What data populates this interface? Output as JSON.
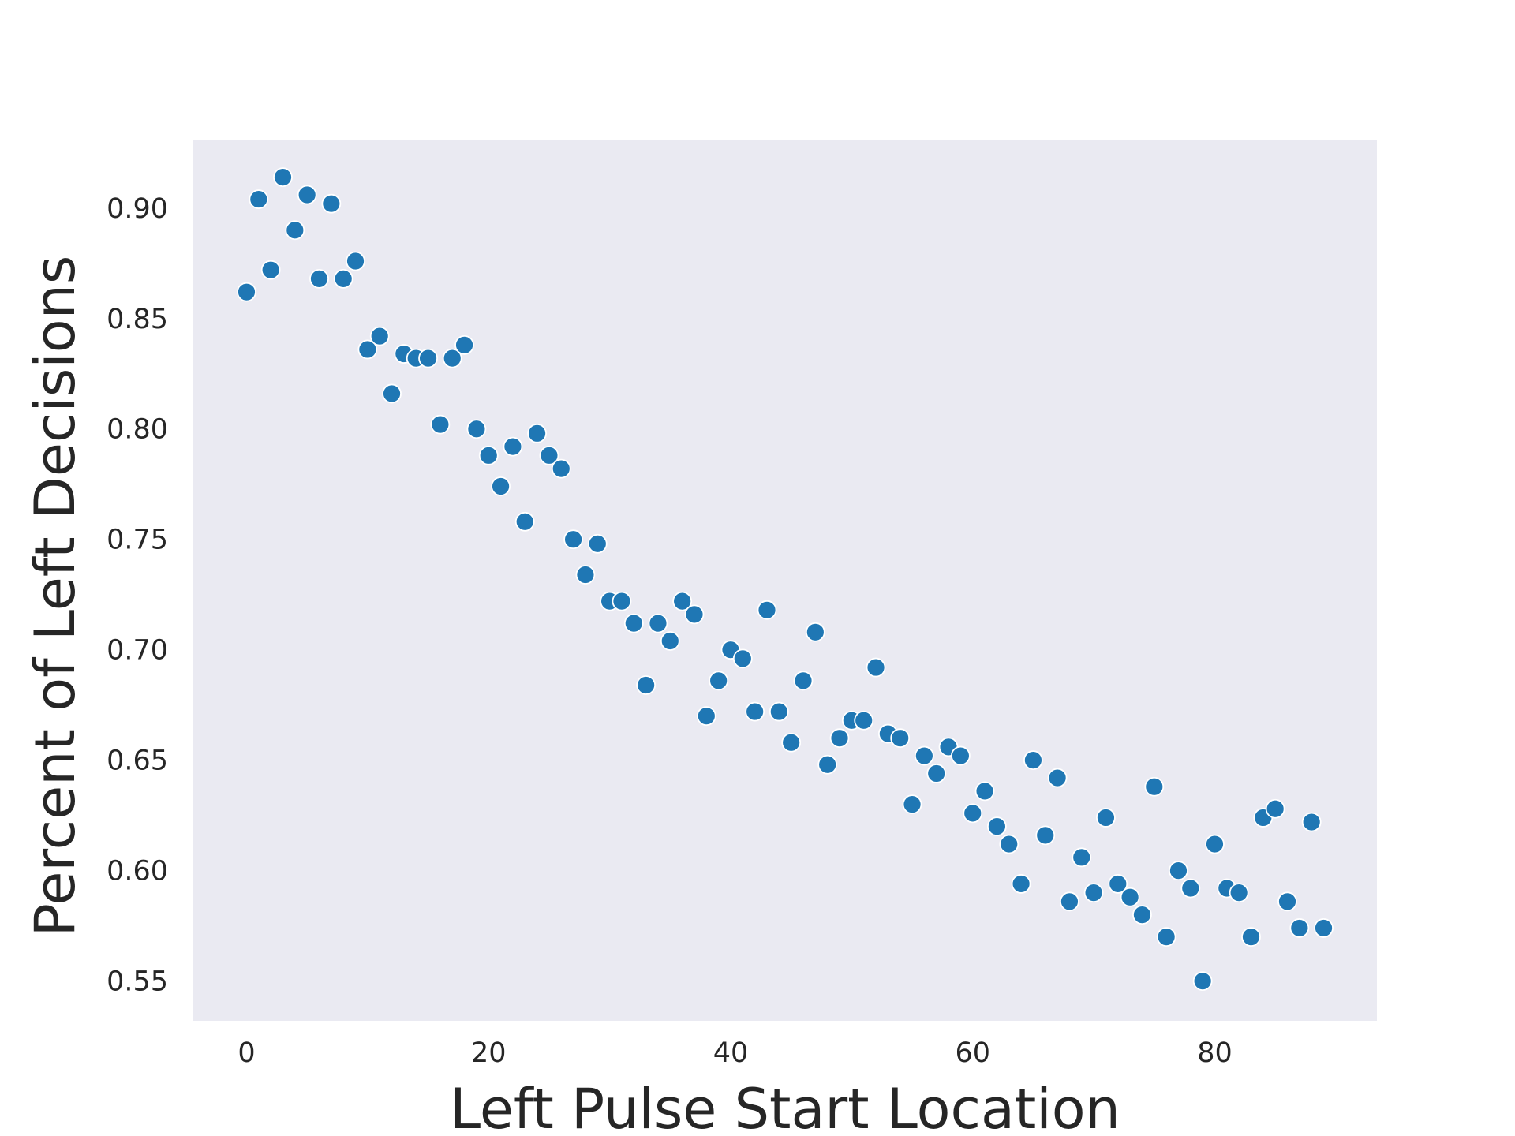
{
  "chart_data": {
    "type": "scatter",
    "title": "",
    "xlabel": "Left Pulse Start Location",
    "ylabel": "Percent of Left Decisions",
    "xlim": [
      -4.4,
      93.4
    ],
    "ylim": [
      0.532,
      0.931
    ],
    "xticks": [
      0,
      20,
      40,
      60,
      80
    ],
    "xtick_labels": [
      "0",
      "20",
      "40",
      "60",
      "80"
    ],
    "yticks": [
      0.55,
      0.6,
      0.65,
      0.7,
      0.75,
      0.8,
      0.85,
      0.9
    ],
    "ytick_labels": [
      "0.55",
      "0.60",
      "0.65",
      "0.70",
      "0.75",
      "0.80",
      "0.85",
      "0.90"
    ],
    "grid": false,
    "legend": "none",
    "colors": {
      "background": "#eaeaf2",
      "marker": "#1f77b4",
      "marker_edge": "#ffffff"
    },
    "series": [
      {
        "x": [
          0,
          1,
          2,
          3,
          4,
          5,
          6,
          7,
          8,
          9,
          10,
          11,
          12,
          13,
          14,
          15,
          16,
          17,
          18,
          19,
          20,
          21,
          22,
          23,
          24,
          25,
          26,
          27,
          28,
          29,
          30,
          31,
          32,
          33,
          34,
          35,
          36,
          37,
          38,
          39,
          40,
          41,
          42,
          43,
          44,
          45,
          46,
          47,
          48,
          49,
          50,
          51,
          52,
          53,
          54,
          55,
          56,
          57,
          58,
          59,
          60,
          61,
          62,
          63,
          64,
          65,
          66,
          67,
          68,
          69,
          70,
          71,
          72,
          73,
          74,
          75,
          76,
          77,
          78,
          79,
          80,
          81,
          82,
          83,
          84,
          85,
          86,
          87,
          88,
          89
        ],
        "y": [
          0.862,
          0.904,
          0.872,
          0.914,
          0.89,
          0.906,
          0.868,
          0.902,
          0.868,
          0.876,
          0.836,
          0.842,
          0.816,
          0.834,
          0.832,
          0.832,
          0.802,
          0.832,
          0.838,
          0.8,
          0.788,
          0.774,
          0.792,
          0.758,
          0.798,
          0.788,
          0.782,
          0.75,
          0.734,
          0.748,
          0.722,
          0.722,
          0.712,
          0.684,
          0.712,
          0.704,
          0.722,
          0.716,
          0.67,
          0.686,
          0.7,
          0.696,
          0.672,
          0.718,
          0.672,
          0.658,
          0.686,
          0.708,
          0.648,
          0.66,
          0.668,
          0.668,
          0.692,
          0.662,
          0.66,
          0.63,
          0.652,
          0.644,
          0.656,
          0.652,
          0.626,
          0.636,
          0.62,
          0.612,
          0.594,
          0.65,
          0.616,
          0.642,
          0.586,
          0.606,
          0.59,
          0.624,
          0.594,
          0.588,
          0.58,
          0.638,
          0.57,
          0.6,
          0.592,
          0.55,
          0.612,
          0.592,
          0.59,
          0.57,
          0.624,
          0.628,
          0.586,
          0.574,
          0.622,
          0.574
        ]
      }
    ]
  }
}
